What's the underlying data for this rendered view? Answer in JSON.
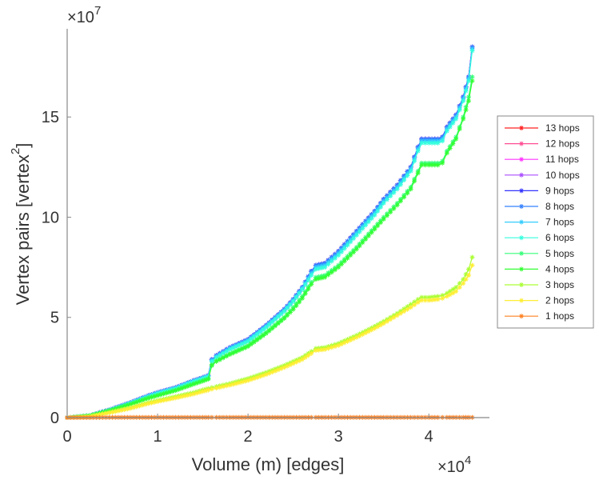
{
  "chart_data": {
    "type": "line",
    "title": "",
    "xlabel": "Volume (m) [edges]",
    "ylabel": "Vertex pairs [vertex",
    "ylabel_sup": "2",
    "ylabel_end": "]",
    "x_multiplier": "×10",
    "x_multiplier_exp": "4",
    "y_multiplier": "×10",
    "y_multiplier_exp": "7",
    "xlim": [
      0,
      4.67
    ],
    "ylim": [
      0,
      19.4
    ],
    "xticks": [
      0,
      1,
      2,
      3,
      4
    ],
    "xtick_labels": [
      "0",
      "1",
      "2",
      "3",
      "4"
    ],
    "yticks": [
      0,
      5,
      10,
      15
    ],
    "ytick_labels": [
      "0",
      "5",
      "10",
      "15"
    ],
    "grid": false,
    "legend_position": "right",
    "x": [
      0,
      0.25,
      0.5,
      0.7,
      0.9,
      1.0,
      1.2,
      1.4,
      1.5,
      1.56,
      1.6,
      1.65,
      1.8,
      2.0,
      2.2,
      2.4,
      2.5,
      2.6,
      2.7,
      2.75,
      2.85,
      3.0,
      3.2,
      3.4,
      3.5,
      3.65,
      3.8,
      3.88,
      3.92,
      4.0,
      4.1,
      4.15,
      4.2,
      4.3,
      4.38,
      4.44,
      4.48
    ],
    "series": [
      {
        "name": "13 hops",
        "color": "#ff2020",
        "values": [
          0,
          0.1,
          0.44,
          0.75,
          1.1,
          1.25,
          1.5,
          1.85,
          2.0,
          2.1,
          2.9,
          3.1,
          3.5,
          3.9,
          4.6,
          5.4,
          5.9,
          6.5,
          7.3,
          7.6,
          7.7,
          8.3,
          9.3,
          10.3,
          10.9,
          11.6,
          12.5,
          13.5,
          13.9,
          13.9,
          13.9,
          14.0,
          14.5,
          15.1,
          16.0,
          17.0,
          18.5
        ]
      },
      {
        "name": "12 hops",
        "color": "#ff4d94",
        "values": [
          0,
          0.1,
          0.44,
          0.75,
          1.1,
          1.25,
          1.5,
          1.85,
          2.0,
          2.1,
          2.9,
          3.1,
          3.5,
          3.9,
          4.6,
          5.4,
          5.9,
          6.5,
          7.3,
          7.6,
          7.7,
          8.3,
          9.3,
          10.3,
          10.9,
          11.6,
          12.5,
          13.5,
          13.9,
          13.9,
          13.9,
          14.0,
          14.5,
          15.1,
          16.0,
          17.0,
          18.5
        ]
      },
      {
        "name": "11 hops",
        "color": "#ff33ff",
        "values": [
          0,
          0.1,
          0.44,
          0.75,
          1.1,
          1.25,
          1.5,
          1.85,
          2.0,
          2.1,
          2.9,
          3.1,
          3.5,
          3.9,
          4.6,
          5.4,
          5.9,
          6.5,
          7.3,
          7.6,
          7.7,
          8.3,
          9.3,
          10.3,
          10.9,
          11.6,
          12.5,
          13.5,
          13.9,
          13.9,
          13.9,
          14.0,
          14.5,
          15.1,
          16.0,
          17.0,
          18.5
        ]
      },
      {
        "name": "10 hops",
        "color": "#aa4dff",
        "values": [
          0,
          0.1,
          0.44,
          0.75,
          1.1,
          1.25,
          1.5,
          1.85,
          2.0,
          2.1,
          2.9,
          3.1,
          3.5,
          3.9,
          4.6,
          5.4,
          5.9,
          6.5,
          7.3,
          7.6,
          7.7,
          8.3,
          9.3,
          10.3,
          10.9,
          11.6,
          12.5,
          13.5,
          13.9,
          13.9,
          13.9,
          14.0,
          14.5,
          15.1,
          16.0,
          17.0,
          18.5
        ]
      },
      {
        "name": "9 hops",
        "color": "#3333ff",
        "values": [
          0,
          0.1,
          0.44,
          0.75,
          1.1,
          1.25,
          1.5,
          1.85,
          2.0,
          2.1,
          2.9,
          3.1,
          3.5,
          3.9,
          4.6,
          5.4,
          5.9,
          6.5,
          7.3,
          7.6,
          7.7,
          8.3,
          9.3,
          10.3,
          10.9,
          11.6,
          12.5,
          13.5,
          13.9,
          13.9,
          13.9,
          14.0,
          14.5,
          15.1,
          16.0,
          17.0,
          18.5
        ]
      },
      {
        "name": "8 hops",
        "color": "#3380ff",
        "values": [
          0,
          0.1,
          0.44,
          0.75,
          1.1,
          1.25,
          1.5,
          1.85,
          2.0,
          2.1,
          2.9,
          3.1,
          3.5,
          3.9,
          4.6,
          5.4,
          5.9,
          6.5,
          7.3,
          7.6,
          7.7,
          8.3,
          9.3,
          10.3,
          10.9,
          11.6,
          12.5,
          13.5,
          13.9,
          13.9,
          13.9,
          14.0,
          14.5,
          15.1,
          16.0,
          17.0,
          18.5
        ]
      },
      {
        "name": "7 hops",
        "color": "#33ccff",
        "values": [
          0,
          0.1,
          0.43,
          0.74,
          1.08,
          1.23,
          1.48,
          1.83,
          1.98,
          2.08,
          2.85,
          3.05,
          3.45,
          3.85,
          4.55,
          5.35,
          5.85,
          6.45,
          7.2,
          7.5,
          7.6,
          8.2,
          9.2,
          10.2,
          10.8,
          11.5,
          12.4,
          13.4,
          13.8,
          13.8,
          13.8,
          13.9,
          14.4,
          15.0,
          15.9,
          16.9,
          18.4
        ]
      },
      {
        "name": "6 hops",
        "color": "#33ffdd",
        "values": [
          0,
          0.1,
          0.42,
          0.72,
          1.05,
          1.2,
          1.45,
          1.8,
          1.95,
          2.05,
          2.8,
          3.0,
          3.4,
          3.8,
          4.5,
          5.3,
          5.8,
          6.4,
          7.1,
          7.4,
          7.5,
          8.1,
          9.1,
          10.1,
          10.7,
          11.4,
          12.3,
          13.3,
          13.7,
          13.7,
          13.7,
          13.8,
          14.3,
          14.9,
          15.8,
          16.8,
          18.3
        ]
      },
      {
        "name": "5 hops",
        "color": "#33ff77",
        "values": [
          0,
          0.1,
          0.4,
          0.68,
          1.0,
          1.12,
          1.38,
          1.7,
          1.85,
          1.95,
          2.65,
          2.85,
          3.2,
          3.6,
          4.25,
          5.0,
          5.5,
          6.05,
          6.75,
          7.0,
          7.1,
          7.6,
          8.5,
          9.5,
          10.0,
          10.7,
          11.5,
          12.3,
          12.7,
          12.7,
          12.7,
          12.8,
          13.3,
          14.0,
          15.0,
          16.0,
          17.0
        ]
      },
      {
        "name": "4 hops",
        "color": "#33ff33",
        "values": [
          0,
          0.1,
          0.39,
          0.66,
          0.97,
          1.1,
          1.35,
          1.67,
          1.82,
          1.92,
          2.6,
          2.8,
          3.15,
          3.55,
          4.2,
          4.95,
          5.4,
          5.95,
          6.65,
          6.9,
          7.0,
          7.5,
          8.4,
          9.4,
          9.9,
          10.6,
          11.4,
          12.2,
          12.6,
          12.6,
          12.6,
          12.7,
          13.2,
          13.9,
          14.9,
          15.8,
          16.8
        ]
      },
      {
        "name": "3 hops",
        "color": "#aaff33",
        "values": [
          0,
          0.06,
          0.3,
          0.5,
          0.75,
          0.85,
          1.05,
          1.25,
          1.38,
          1.45,
          1.5,
          1.55,
          1.7,
          1.95,
          2.25,
          2.6,
          2.8,
          3.0,
          3.3,
          3.45,
          3.5,
          3.7,
          4.1,
          4.55,
          4.8,
          5.2,
          5.65,
          5.9,
          6.0,
          6.0,
          6.05,
          6.1,
          6.2,
          6.5,
          6.9,
          7.4,
          8.0
        ]
      },
      {
        "name": "2 hops",
        "color": "#ffee33",
        "values": [
          0,
          0.05,
          0.27,
          0.46,
          0.7,
          0.8,
          0.98,
          1.18,
          1.3,
          1.37,
          1.42,
          1.47,
          1.62,
          1.85,
          2.15,
          2.5,
          2.7,
          2.9,
          3.2,
          3.35,
          3.4,
          3.6,
          4.0,
          4.45,
          4.7,
          5.1,
          5.5,
          5.75,
          5.85,
          5.85,
          5.9,
          5.95,
          6.05,
          6.3,
          6.7,
          7.1,
          7.6
        ]
      },
      {
        "name": "1 hops",
        "color": "#ff8020",
        "values": [
          0,
          0,
          0.01,
          0.01,
          0.01,
          0.01,
          0.01,
          0.01,
          0.01,
          0.01,
          0.01,
          0.01,
          0.01,
          0.01,
          0.01,
          0.01,
          0.01,
          0.01,
          0.01,
          0.01,
          0.01,
          0.01,
          0.01,
          0.01,
          0.01,
          0.01,
          0.01,
          0.01,
          0.01,
          0.01,
          0.01,
          0.01,
          0.01,
          0.01,
          0.01,
          0.01,
          0.01
        ]
      }
    ]
  }
}
